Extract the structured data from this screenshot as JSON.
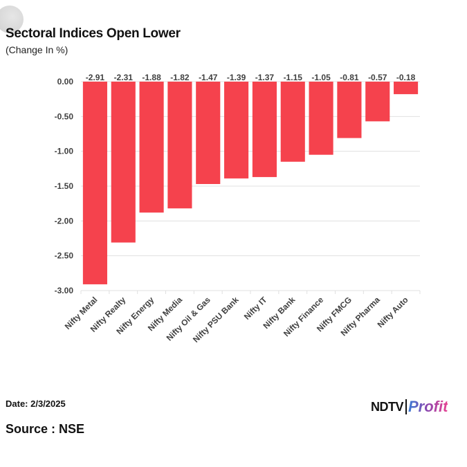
{
  "header": {
    "title": "Sectoral Indices Open Lower",
    "subtitle": "(Change In %)"
  },
  "footer": {
    "date": "Date: 2/3/2025",
    "source": "Source : NSE",
    "logo_ndtv": "NDTV",
    "logo_profit": "Profit"
  },
  "colors": {
    "bar": "#f5424d",
    "grid": "#e0e0e0",
    "text": "#404040"
  },
  "chart_data": {
    "type": "bar",
    "categories": [
      "Nifty Metal",
      "Nifty Realty",
      "Nifty Energy",
      "Nifty Media",
      "Nifty Oil & Gas",
      "Nifty PSU Bank",
      "Nifty IT",
      "Nifty Bank",
      "Nifty Finance",
      "Nifty FMCG",
      "Nifty Pharma",
      "Nifty Auto"
    ],
    "values": [
      -2.91,
      -2.31,
      -1.88,
      -1.82,
      -1.47,
      -1.39,
      -1.37,
      -1.15,
      -1.05,
      -0.81,
      -0.57,
      -0.18
    ],
    "data_labels": [
      "-2.91",
      "-2.31",
      "-1.88",
      "-1.82",
      "-1.47",
      "-1.39",
      "-1.37",
      "-1.15",
      "-1.05",
      "-0.81",
      "-0.57",
      "-0.18"
    ],
    "yticks": [
      "0.00",
      "-0.50",
      "-1.00",
      "-1.50",
      "-2.00",
      "-2.50",
      "-3.00"
    ],
    "ylim": [
      -3,
      0
    ],
    "grid": true
  }
}
